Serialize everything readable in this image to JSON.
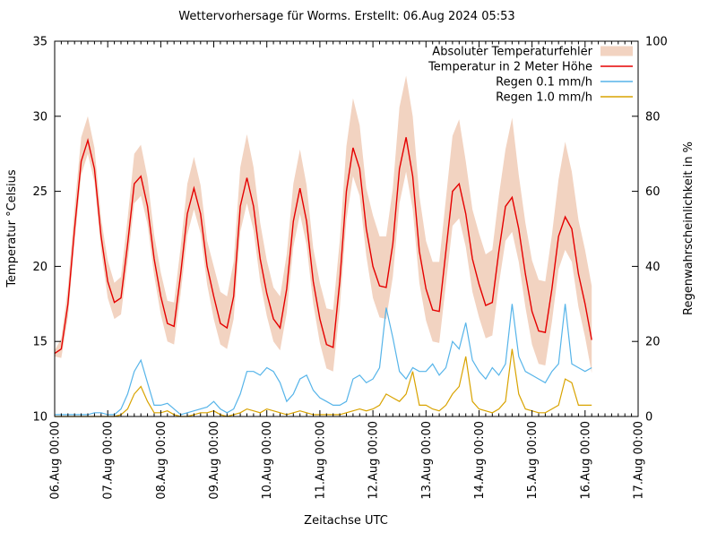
{
  "title": "Wettervorhersage für Worms. Erstellt: 06.Aug 2024 05:53",
  "axes": {
    "left": {
      "label": "Temperatur °Celsius",
      "ticks": [
        10,
        15,
        20,
        25,
        30,
        35
      ],
      "range": [
        10,
        35
      ]
    },
    "right": {
      "label": "Regenwahrscheinlichkeit in %",
      "ticks": [
        0,
        20,
        40,
        60,
        80,
        100
      ],
      "range": [
        0,
        100
      ]
    },
    "x": {
      "label": "Zeitachse UTC",
      "tick_labels": [
        "06.Aug 00:00",
        "07.Aug 00:00",
        "08.Aug 00:00",
        "09.Aug 00:00",
        "10.Aug 00:00",
        "11.Aug 00:00",
        "12.Aug 00:00",
        "13.Aug 00:00",
        "14.Aug 00:00",
        "15.Aug 00:00",
        "16.Aug 00:00",
        "17.Aug 00:00"
      ],
      "range_days": [
        0,
        11
      ],
      "minor_tick_step_hours": 3
    }
  },
  "legend": {
    "position": "top-right-inside",
    "items": [
      {
        "label": "Absoluter Temperaturfehler",
        "type": "band",
        "color": "#f2d3c1"
      },
      {
        "label": "Temperatur in 2 Meter Höhe",
        "type": "line",
        "color": "#e50000"
      },
      {
        "label": "Regen 0.1 mm/h",
        "type": "line",
        "color": "#56b4e9"
      },
      {
        "label": "Regen 1.0 mm/h",
        "type": "line",
        "color": "#d9a300"
      }
    ]
  },
  "chart_data": {
    "type": "line",
    "title": "Wettervorhersage für Worms. Erstellt: 06.Aug 2024 05:53",
    "x_unit": "days since 06.Aug 2024 00:00 UTC",
    "x_start_label": "06.Aug 00:00",
    "x_end_label": "17.Aug 00:00",
    "x_step_days": 0.125,
    "xlim_days": [
      0,
      11
    ],
    "ylim_left_celsius": [
      10,
      35
    ],
    "ylim_right_percent": [
      0,
      100
    ],
    "grid": false,
    "series_axis": {
      "temperature_c": "left",
      "rain_0_1_percent": "right",
      "rain_1_0_percent": "right"
    },
    "temperature_c": [
      14.2,
      14.5,
      17.5,
      22.5,
      27.0,
      28.4,
      26.5,
      22.0,
      19.0,
      17.6,
      17.9,
      21.5,
      25.5,
      26.0,
      24.0,
      20.5,
      18.0,
      16.2,
      16.0,
      19.5,
      23.5,
      25.2,
      23.5,
      20.0,
      18.0,
      16.2,
      15.9,
      18.0,
      24.0,
      25.9,
      24.0,
      20.5,
      18.2,
      16.5,
      15.9,
      18.5,
      23.0,
      25.2,
      23.0,
      19.0,
      16.5,
      14.8,
      14.6,
      19.0,
      25.0,
      27.9,
      26.5,
      22.5,
      20.0,
      18.7,
      18.6,
      21.5,
      26.5,
      28.6,
      26.0,
      21.0,
      18.5,
      17.1,
      17.0,
      21.0,
      25.0,
      25.5,
      23.5,
      20.5,
      18.8,
      17.4,
      17.6,
      21.0,
      24.0,
      24.6,
      22.5,
      19.5,
      17.0,
      15.7,
      15.6,
      18.5,
      22.0,
      23.3,
      22.5,
      19.5,
      17.5,
      15.1
    ],
    "temp_error_upper_c": [
      14.4,
      15.2,
      18.6,
      23.9,
      28.6,
      30.0,
      27.9,
      23.2,
      20.4,
      18.9,
      19.3,
      23.2,
      27.5,
      28.1,
      25.9,
      22.1,
      19.6,
      17.7,
      17.6,
      21.3,
      25.5,
      27.3,
      25.4,
      21.7,
      20.0,
      18.3,
      18.0,
      20.3,
      26.6,
      28.8,
      26.6,
      22.9,
      20.4,
      18.6,
      18.0,
      20.8,
      25.5,
      27.8,
      25.4,
      21.2,
      18.9,
      17.2,
      17.1,
      21.7,
      28.0,
      31.2,
      29.4,
      25.2,
      23.4,
      22.0,
      22.0,
      25.2,
      30.6,
      32.7,
      30.0,
      24.7,
      21.7,
      20.3,
      20.3,
      24.5,
      28.7,
      29.8,
      27.0,
      23.8,
      22.2,
      20.8,
      21.1,
      24.7,
      27.8,
      29.9,
      26.1,
      22.9,
      20.4,
      19.1,
      19.0,
      22.1,
      25.8,
      28.3,
      26.3,
      23.1,
      21.1,
      18.7
    ],
    "temp_error_lower_c": [
      14.0,
      13.9,
      16.6,
      21.6,
      26.1,
      27.5,
      25.6,
      21.1,
      17.9,
      16.5,
      16.8,
      20.3,
      24.2,
      24.7,
      22.8,
      19.4,
      16.8,
      15.0,
      14.8,
      18.2,
      22.1,
      23.8,
      22.2,
      18.8,
      16.5,
      14.8,
      14.5,
      16.5,
      22.3,
      24.2,
      22.4,
      19.0,
      16.7,
      15.0,
      14.4,
      16.9,
      21.3,
      23.5,
      21.4,
      17.5,
      14.9,
      13.2,
      13.0,
      17.2,
      23.1,
      26.0,
      24.7,
      20.7,
      17.9,
      16.6,
      16.5,
      19.3,
      24.2,
      26.3,
      23.8,
      18.9,
      16.4,
      15.0,
      14.9,
      18.8,
      22.7,
      23.2,
      21.3,
      18.3,
      16.6,
      15.2,
      15.4,
      18.8,
      21.7,
      22.3,
      20.3,
      17.3,
      14.8,
      13.5,
      13.4,
      16.3,
      19.8,
      21.1,
      20.3,
      17.3,
      15.3,
      12.9
    ],
    "rain_0_1_percent": [
      0.5,
      0.5,
      0.5,
      0.5,
      0.5,
      0.5,
      1,
      1,
      0.5,
      0.5,
      2,
      6,
      12,
      15,
      9,
      3,
      3,
      3.5,
      2,
      0.5,
      1,
      1.5,
      2,
      2.5,
      4,
      2,
      1,
      2,
      6,
      12,
      12,
      11,
      13,
      12,
      9,
      4,
      6,
      10,
      11,
      7,
      5,
      4,
      3,
      3,
      4,
      10,
      11,
      9,
      10,
      13,
      29,
      21,
      12,
      10,
      13,
      12,
      12,
      14,
      11,
      13,
      20,
      18,
      25,
      15,
      12,
      10,
      13,
      11,
      14,
      30,
      16,
      12,
      11,
      10,
      9,
      12,
      14,
      30,
      14,
      13,
      12,
      13
    ],
    "rain_1_0_percent": [
      0,
      0,
      0,
      0,
      0,
      0,
      0,
      0,
      0,
      0,
      0.5,
      2,
      6,
      8,
      4,
      1,
      1,
      1.5,
      0.5,
      0,
      0,
      0.5,
      1,
      1,
      1.5,
      0.5,
      0,
      0.5,
      1,
      2,
      1.5,
      1,
      2,
      1.5,
      1,
      0.5,
      1,
      1.5,
      1,
      0.5,
      0.5,
      0.5,
      0.5,
      0.5,
      1,
      1.5,
      2,
      1.5,
      2,
      3,
      6,
      5,
      4,
      6,
      12,
      3,
      3,
      2,
      1.5,
      3,
      6,
      8,
      16,
      4,
      2,
      1.5,
      1,
      2,
      4,
      18,
      6,
      2,
      1.5,
      1,
      1,
      2,
      3,
      10,
      9,
      3,
      3,
      3
    ]
  }
}
